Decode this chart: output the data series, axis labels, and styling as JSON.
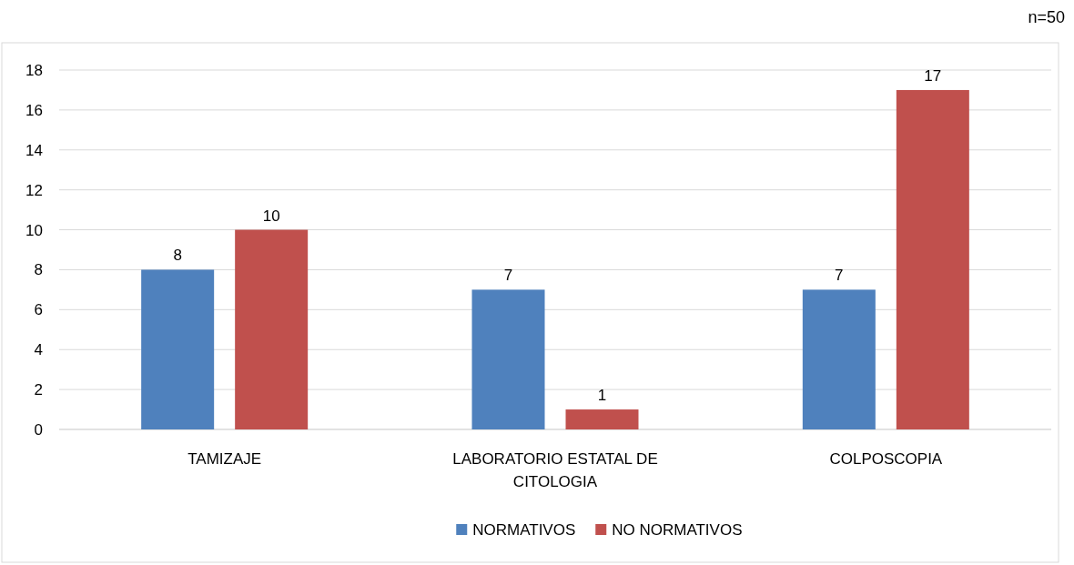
{
  "chart_data": {
    "type": "bar",
    "categories": [
      "TAMIZAJE",
      "LABORATORIO ESTATAL DE CITOLOGIA",
      "COLPOSCOPIA"
    ],
    "series": [
      {
        "name": "NORMATIVOS",
        "color": "#4f81bd",
        "values": [
          8,
          7,
          7
        ]
      },
      {
        "name": "NO NORMATIVOS",
        "color": "#c0504d",
        "values": [
          10,
          1,
          17
        ]
      }
    ],
    "ylim": [
      0,
      18
    ],
    "yticks": [
      0,
      2,
      4,
      6,
      8,
      10,
      12,
      14,
      16,
      18
    ],
    "grid": "y",
    "data_labels": true,
    "legend": "bottom",
    "annotations": [
      "n=50"
    ]
  }
}
